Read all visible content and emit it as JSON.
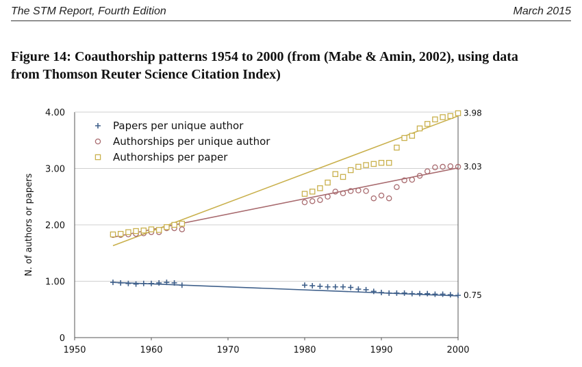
{
  "header": {
    "left": "The STM Report, Fourth Edition",
    "right": "March 2015"
  },
  "figure": {
    "title_line1": "Figure 14: Coauthorship patterns 1954 to 2000 (from (Mabe & Amin, 2002), using data",
    "title_line2": "from Thomson Reuter Science Citation Index)"
  },
  "chart_data": {
    "type": "scatter",
    "title": "",
    "xlabel": "",
    "ylabel": "N. of authors or papers",
    "xlim": [
      1950,
      2000
    ],
    "ylim": [
      0,
      4
    ],
    "x_ticks": [
      "1950",
      "1960",
      "1970",
      "1980",
      "1990",
      "2000"
    ],
    "y_ticks": [
      "0",
      "1.00",
      "2.00",
      "3.00",
      "4.00"
    ],
    "grid": true,
    "legend_position": "top-left",
    "series": [
      {
        "name": "Papers per unique author",
        "marker": "plus",
        "color": "#3e5f8a",
        "x": [
          1955,
          1956,
          1957,
          1958,
          1959,
          1960,
          1961,
          1962,
          1963,
          1964,
          1980,
          1981,
          1982,
          1983,
          1984,
          1985,
          1986,
          1987,
          1988,
          1989,
          1990,
          1991,
          1992,
          1993,
          1994,
          1995,
          1996,
          1997,
          1998,
          1999,
          2000
        ],
        "y": [
          0.98,
          0.97,
          0.96,
          0.95,
          0.96,
          0.96,
          0.97,
          0.98,
          0.97,
          0.93,
          0.93,
          0.92,
          0.91,
          0.9,
          0.9,
          0.9,
          0.89,
          0.86,
          0.85,
          0.82,
          0.8,
          0.79,
          0.79,
          0.79,
          0.78,
          0.78,
          0.78,
          0.77,
          0.77,
          0.76,
          0.75
        ],
        "trend": [
          [
            1955,
            0.98
          ],
          [
            2000,
            0.74
          ]
        ],
        "end_label": "0.75"
      },
      {
        "name": "Authorships per unique author",
        "marker": "circle",
        "color": "#a86a6e",
        "x": [
          1955,
          1956,
          1957,
          1958,
          1959,
          1960,
          1961,
          1962,
          1963,
          1964,
          1980,
          1981,
          1982,
          1983,
          1984,
          1985,
          1986,
          1987,
          1988,
          1989,
          1990,
          1991,
          1992,
          1993,
          1994,
          1995,
          1996,
          1997,
          1998,
          1999,
          2000
        ],
        "y": [
          1.82,
          1.82,
          1.83,
          1.84,
          1.85,
          1.87,
          1.87,
          1.94,
          1.94,
          1.92,
          2.4,
          2.42,
          2.44,
          2.5,
          2.59,
          2.56,
          2.6,
          2.61,
          2.6,
          2.47,
          2.52,
          2.47,
          2.67,
          2.79,
          2.8,
          2.87,
          2.95,
          3.02,
          3.03,
          3.04,
          3.03
        ],
        "trend": [
          [
            1955,
            1.78
          ],
          [
            2000,
            3.01
          ]
        ],
        "end_label": "3.03"
      },
      {
        "name": "Authorships per paper",
        "marker": "square",
        "color": "#c9b04c",
        "x": [
          1955,
          1956,
          1957,
          1958,
          1959,
          1960,
          1961,
          1962,
          1963,
          1964,
          1980,
          1981,
          1982,
          1983,
          1984,
          1985,
          1986,
          1987,
          1988,
          1989,
          1990,
          1991,
          1992,
          1993,
          1994,
          1995,
          1996,
          1997,
          1998,
          1999,
          2000
        ],
        "y": [
          1.83,
          1.84,
          1.87,
          1.89,
          1.9,
          1.92,
          1.91,
          1.96,
          2.0,
          2.02,
          2.55,
          2.59,
          2.65,
          2.75,
          2.9,
          2.85,
          2.97,
          3.03,
          3.06,
          3.08,
          3.1,
          3.1,
          3.37,
          3.54,
          3.58,
          3.71,
          3.79,
          3.87,
          3.91,
          3.93,
          3.98
        ],
        "trend": [
          [
            1955,
            1.63
          ],
          [
            2000,
            3.93
          ]
        ],
        "end_label": "3.98"
      }
    ]
  },
  "colors": {
    "grid": "#cfcfcf",
    "axis": "#555555"
  }
}
